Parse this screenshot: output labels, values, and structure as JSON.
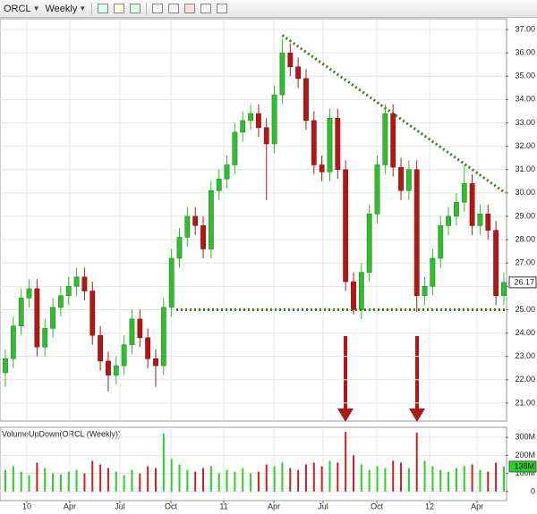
{
  "toolbar": {
    "symbol": "ORCL",
    "period": "Weekly"
  },
  "chart_data": {
    "type": "candlestick",
    "open": [
      22.3,
      22.9,
      24.3,
      25.5,
      25.9,
      23.4,
      24.2,
      25.1,
      25.6,
      26.0,
      26.4,
      25.8,
      23.9,
      22.8,
      22.2,
      22.6,
      23.5,
      24.6,
      23.8,
      22.9,
      22.6,
      25.1,
      27.2,
      28.1,
      29.0,
      28.6,
      27.6,
      30.1,
      30.6,
      31.2,
      32.6,
      33.1,
      33.4,
      32.8,
      32.1,
      34.2,
      36.0,
      35.4,
      34.9,
      33.1,
      31.2,
      30.9,
      33.2,
      31.0,
      26.2,
      25.0,
      26.6,
      29.1,
      31.2,
      33.4,
      31.1,
      30.1,
      31.0,
      25.6,
      26.0,
      27.2,
      28.6,
      29.0,
      29.6,
      30.4,
      28.6,
      29.1,
      28.4,
      25.6
    ],
    "high": [
      23.3,
      24.7,
      25.9,
      26.3,
      26.3,
      24.6,
      25.5,
      26.0,
      26.4,
      26.8,
      26.8,
      26.2,
      24.3,
      23.2,
      23.0,
      23.9,
      25.0,
      25.0,
      24.2,
      23.3,
      25.5,
      27.6,
      28.5,
      29.4,
      29.4,
      29.0,
      30.5,
      31.0,
      31.6,
      33.0,
      33.5,
      33.8,
      33.8,
      33.2,
      34.6,
      36.6,
      36.4,
      35.8,
      35.3,
      33.5,
      31.6,
      33.6,
      33.6,
      31.4,
      26.6,
      27.0,
      29.5,
      31.6,
      33.8,
      33.8,
      31.5,
      31.4,
      31.4,
      26.4,
      27.6,
      29.0,
      29.4,
      30.0,
      31.2,
      30.8,
      29.5,
      29.5,
      28.8,
      26.6
    ],
    "low": [
      21.7,
      22.5,
      23.9,
      25.1,
      23.0,
      23.0,
      23.8,
      24.7,
      25.2,
      25.6,
      25.4,
      23.5,
      22.4,
      21.5,
      21.8,
      22.2,
      23.1,
      23.4,
      22.5,
      21.7,
      22.2,
      24.7,
      26.8,
      27.7,
      28.2,
      27.2,
      27.2,
      29.7,
      30.2,
      30.8,
      32.2,
      32.7,
      32.4,
      29.7,
      31.7,
      33.8,
      35.0,
      34.5,
      32.7,
      30.8,
      30.5,
      30.5,
      30.6,
      25.8,
      24.8,
      24.6,
      26.2,
      28.7,
      30.8,
      30.7,
      29.7,
      29.7,
      24.9,
      25.2,
      25.6,
      26.8,
      28.2,
      28.6,
      29.2,
      28.2,
      28.2,
      28.0,
      25.2,
      25.2
    ],
    "close": [
      22.9,
      24.3,
      25.5,
      25.9,
      23.4,
      24.2,
      25.1,
      25.6,
      26.0,
      26.4,
      25.8,
      23.9,
      22.8,
      22.2,
      22.6,
      23.5,
      24.6,
      23.8,
      22.9,
      22.6,
      25.1,
      27.2,
      28.1,
      29.0,
      28.6,
      27.6,
      30.1,
      30.6,
      31.2,
      32.6,
      33.1,
      33.4,
      32.8,
      32.1,
      34.2,
      36.0,
      35.4,
      34.9,
      33.1,
      31.2,
      30.9,
      33.2,
      31.0,
      26.2,
      25.0,
      26.6,
      29.1,
      31.2,
      33.4,
      31.1,
      30.1,
      31.0,
      25.6,
      26.0,
      27.2,
      28.6,
      29.0,
      29.6,
      30.4,
      28.6,
      29.1,
      28.4,
      25.6,
      26.17
    ],
    "up_color": "#33bb33",
    "down_color": "#b01818",
    "ylim": [
      20.27,
      37.42
    ],
    "yticks": [
      {
        "value": 21,
        "label": "21.00"
      },
      {
        "value": 22,
        "label": "22.00"
      },
      {
        "value": 23,
        "label": "23.00"
      },
      {
        "value": 24,
        "label": "24.00"
      },
      {
        "value": 25,
        "label": "25.00"
      },
      {
        "value": 26,
        "label": "26.00"
      },
      {
        "value": 27,
        "label": "27.00"
      },
      {
        "value": 28,
        "label": "28.00"
      },
      {
        "value": 29,
        "label": "29.00"
      },
      {
        "value": 30,
        "label": "30.00"
      },
      {
        "value": 31,
        "label": "31.00"
      },
      {
        "value": 32,
        "label": "32.00"
      },
      {
        "value": 33,
        "label": "33.00"
      },
      {
        "value": 34,
        "label": "34.00"
      },
      {
        "value": 35,
        "label": "35.00"
      },
      {
        "value": 36,
        "label": "36.00"
      },
      {
        "value": 37,
        "label": "37.00"
      }
    ],
    "xlim": [
      -0.68,
      63.23
    ],
    "xticks": [
      {
        "value": 2.71,
        "label": "10"
      },
      {
        "value": 8.14,
        "label": "Apr"
      },
      {
        "value": 14.48,
        "label": "Jul"
      },
      {
        "value": 20.93,
        "label": "Oct"
      },
      {
        "value": 27.6,
        "label": "11"
      },
      {
        "value": 33.94,
        "label": "Apr"
      },
      {
        "value": 40.16,
        "label": "Jul"
      },
      {
        "value": 46.95,
        "label": "Oct"
      },
      {
        "value": 53.62,
        "label": "12"
      },
      {
        "value": 59.62,
        "label": "Apr"
      }
    ],
    "grid": true,
    "trendlines": [
      {
        "color": "#3d7a1c",
        "x": [
          35,
          63.2
        ],
        "y": [
          36.75,
          30.0
        ]
      },
      {
        "color": "#3d7a1c",
        "x": [
          21.6,
          63.2
        ],
        "y": [
          25.0,
          25.0
        ]
      }
    ],
    "volume": {
      "title": "VolumeUpDown(ORCL (Weekly))",
      "values": [
        120,
        140,
        110,
        90,
        160,
        130,
        100,
        95,
        110,
        120,
        100,
        170,
        150,
        130,
        110,
        90,
        120,
        100,
        140,
        130,
        320,
        180,
        150,
        120,
        110,
        130,
        140,
        100,
        120,
        110,
        130,
        100,
        110,
        150,
        140,
        160,
        130,
        120,
        150,
        160,
        140,
        170,
        160,
        330,
        200,
        150,
        120,
        140,
        130,
        170,
        160,
        130,
        325,
        170,
        140,
        120,
        110,
        130,
        140,
        150,
        120,
        110,
        160,
        138
      ],
      "last_value_label": "138M",
      "ylim": [
        -50,
        355
      ],
      "yticks": [
        0,
        {
          "value": 100,
          "label": "100M"
        },
        {
          "value": 200,
          "label": "200M"
        },
        {
          "value": 300,
          "label": "300M"
        }
      ]
    }
  }
}
